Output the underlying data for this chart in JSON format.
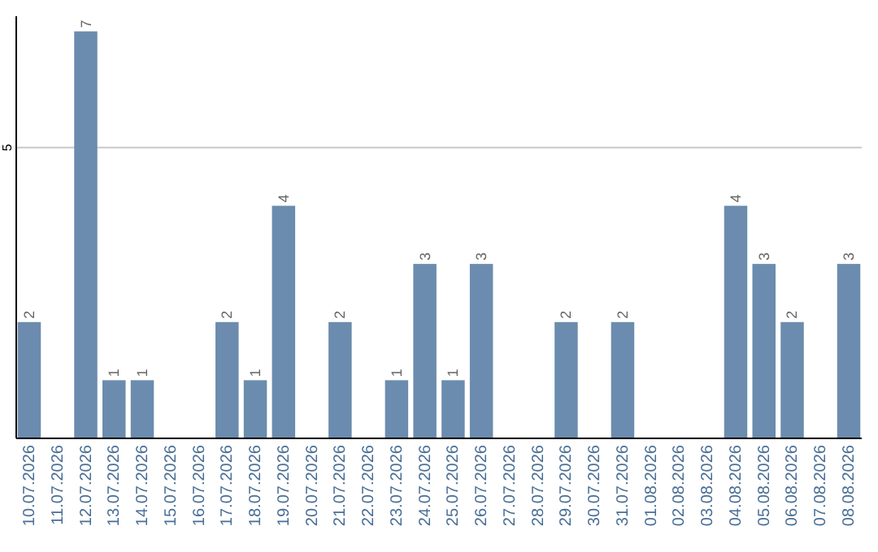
{
  "chart_data": {
    "type": "bar",
    "categories": [
      "10.07.2026",
      "11.07.2026",
      "12.07.2026",
      "13.07.2026",
      "14.07.2026",
      "15.07.2026",
      "16.07.2026",
      "17.07.2026",
      "18.07.2026",
      "19.07.2026",
      "20.07.2026",
      "21.07.2026",
      "22.07.2026",
      "23.07.2026",
      "24.07.2026",
      "25.07.2026",
      "26.07.2026",
      "27.07.2026",
      "28.07.2026",
      "29.07.2026",
      "30.07.2026",
      "31.07.2026",
      "01.08.2026",
      "02.08.2026",
      "03.08.2026",
      "04.08.2026",
      "05.08.2026",
      "06.08.2026",
      "07.08.2026",
      "08.08.2026"
    ],
    "values": [
      2,
      0,
      7,
      1,
      1,
      0,
      0,
      2,
      1,
      4,
      0,
      2,
      0,
      1,
      3,
      1,
      3,
      0,
      0,
      2,
      0,
      2,
      0,
      0,
      0,
      4,
      3,
      2,
      0,
      3
    ],
    "value_labels": [
      "2",
      null,
      "7",
      "1",
      "1",
      null,
      null,
      "2",
      "1",
      "4",
      null,
      "2",
      null,
      "1",
      "3",
      "1",
      "3",
      null,
      null,
      "2",
      null,
      "2",
      null,
      null,
      null,
      "4",
      "3",
      "2",
      null,
      "3"
    ],
    "color": "#6b8cae",
    "ylim": [
      0,
      7.26
    ],
    "yticks": [
      5
    ],
    "grid": "y"
  }
}
